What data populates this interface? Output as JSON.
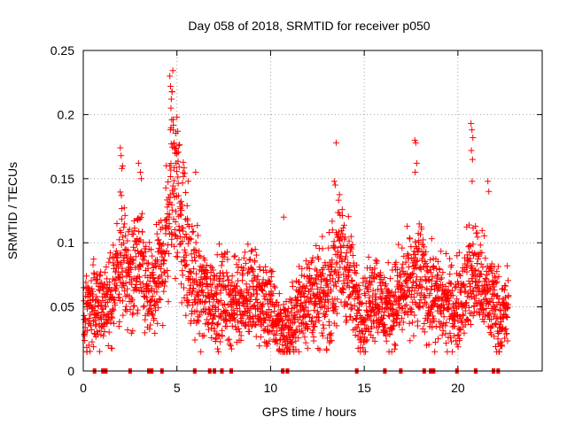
{
  "chart_data": {
    "type": "scatter",
    "title": "Day 058 of 2018, SRMTID for receiver p050",
    "xlabel": "GPS time / hours",
    "ylabel": "SRMTID / TECUs",
    "xlim": [
      0,
      24.5
    ],
    "ylim": [
      0,
      0.25
    ],
    "x_ticks": [
      0,
      5,
      10,
      15,
      20
    ],
    "y_ticks": [
      0,
      0.05,
      0.1,
      0.15,
      0.2,
      0.25
    ],
    "x_tick_labels": [
      "0",
      "5",
      "10",
      "15",
      "20"
    ],
    "y_tick_labels": [
      "0",
      "0.05",
      "0.1",
      "0.15",
      "0.2",
      "0.25"
    ],
    "grid": true,
    "marker": "+",
    "color": "#ff0000",
    "envelope": [
      [
        0.0,
        0.044
      ],
      [
        0.5,
        0.052
      ],
      [
        1.0,
        0.046
      ],
      [
        1.5,
        0.058
      ],
      [
        2.0,
        0.09
      ],
      [
        2.5,
        0.07
      ],
      [
        3.0,
        0.085
      ],
      [
        3.5,
        0.055
      ],
      [
        4.0,
        0.07
      ],
      [
        4.5,
        0.11
      ],
      [
        4.8,
        0.16
      ],
      [
        5.2,
        0.125
      ],
      [
        5.6,
        0.08
      ],
      [
        6.0,
        0.065
      ],
      [
        6.5,
        0.06
      ],
      [
        7.0,
        0.055
      ],
      [
        7.5,
        0.058
      ],
      [
        8.0,
        0.052
      ],
      [
        8.5,
        0.06
      ],
      [
        9.0,
        0.06
      ],
      [
        9.5,
        0.052
      ],
      [
        10.0,
        0.048
      ],
      [
        10.5,
        0.035
      ],
      [
        11.0,
        0.03
      ],
      [
        11.5,
        0.05
      ],
      [
        12.0,
        0.06
      ],
      [
        12.5,
        0.055
      ],
      [
        13.0,
        0.058
      ],
      [
        13.4,
        0.075
      ],
      [
        13.7,
        0.09
      ],
      [
        14.0,
        0.082
      ],
      [
        14.5,
        0.058
      ],
      [
        15.0,
        0.042
      ],
      [
        15.5,
        0.065
      ],
      [
        16.0,
        0.048
      ],
      [
        16.5,
        0.05
      ],
      [
        17.0,
        0.06
      ],
      [
        17.5,
        0.065
      ],
      [
        18.0,
        0.075
      ],
      [
        18.5,
        0.06
      ],
      [
        19.0,
        0.055
      ],
      [
        19.5,
        0.05
      ],
      [
        20.0,
        0.05
      ],
      [
        20.5,
        0.07
      ],
      [
        21.0,
        0.075
      ],
      [
        21.5,
        0.058
      ],
      [
        22.0,
        0.055
      ],
      [
        22.3,
        0.038
      ],
      [
        22.7,
        0.05
      ]
    ],
    "spikes": [
      [
        1.98,
        0.174
      ],
      [
        2.02,
        0.168
      ],
      [
        2.06,
        0.158
      ],
      [
        2.1,
        0.16
      ],
      [
        2.95,
        0.162
      ],
      [
        3.05,
        0.155
      ],
      [
        3.1,
        0.15
      ],
      [
        4.62,
        0.23
      ],
      [
        4.66,
        0.222
      ],
      [
        4.7,
        0.212
      ],
      [
        4.74,
        0.218
      ],
      [
        4.68,
        0.205
      ],
      [
        4.72,
        0.196
      ],
      [
        4.8,
        0.188
      ],
      [
        4.85,
        0.178
      ],
      [
        4.9,
        0.17
      ],
      [
        4.95,
        0.162
      ],
      [
        5.6,
        0.148
      ],
      [
        6.0,
        0.155
      ],
      [
        13.5,
        0.178
      ],
      [
        13.4,
        0.148
      ],
      [
        13.45,
        0.145
      ],
      [
        17.7,
        0.18
      ],
      [
        17.75,
        0.178
      ],
      [
        17.8,
        0.162
      ],
      [
        17.72,
        0.155
      ],
      [
        20.7,
        0.193
      ],
      [
        20.75,
        0.188
      ],
      [
        20.8,
        0.182
      ],
      [
        20.72,
        0.172
      ],
      [
        20.78,
        0.165
      ],
      [
        20.76,
        0.148
      ],
      [
        21.6,
        0.148
      ],
      [
        21.65,
        0.14
      ],
      [
        10.7,
        0.12
      ]
    ],
    "gap_markers_x": [
      0.6,
      1.05,
      1.2,
      2.5,
      3.5,
      3.65,
      4.2,
      5.95,
      6.75,
      7.0,
      7.4,
      7.9,
      10.65,
      10.9,
      14.6,
      16.1,
      16.95,
      18.2,
      18.55,
      18.7,
      19.95,
      20.95,
      21.9,
      22.15
    ]
  }
}
